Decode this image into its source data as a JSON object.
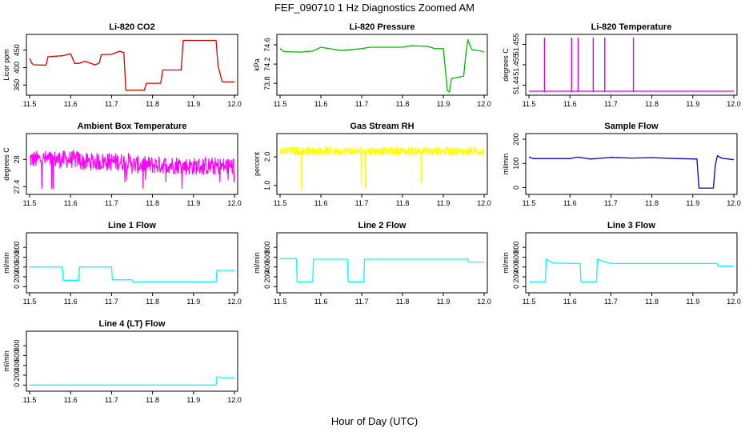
{
  "figure": {
    "title": "FEF_090710  1 Hz Diagnostics Zoomed AM",
    "xlabel": "Hour of Day (UTC)"
  },
  "chart_data": [
    {
      "type": "line",
      "title": "Li-820 CO2",
      "ylabel": "Licor ppm",
      "color": "#dd0000",
      "xlim": [
        11.5,
        12.0
      ],
      "xticks": [
        11.5,
        11.6,
        11.7,
        11.8,
        11.9,
        12.0
      ],
      "ylim": [
        330,
        486
      ],
      "yticks": [
        350,
        400,
        450
      ],
      "series": [
        {
          "x": [
            11.5,
            11.505,
            11.51,
            11.54,
            11.545,
            11.58,
            11.6,
            11.61,
            11.62,
            11.635,
            11.66,
            11.67,
            11.675,
            11.7,
            11.72,
            11.73,
            11.735,
            11.78,
            11.785,
            11.82,
            11.825,
            11.87,
            11.875,
            11.955,
            11.96,
            11.97,
            11.975,
            12.0
          ],
          "y": [
            427,
            413,
            408,
            407,
            431,
            434,
            440,
            412,
            412,
            418,
            408,
            413,
            437,
            438,
            447,
            443,
            335,
            335,
            355,
            355,
            393,
            393,
            478,
            478,
            405,
            360,
            359,
            359
          ]
        }
      ]
    },
    {
      "type": "line",
      "title": "Li-820 Pressure",
      "ylabel": "kPa",
      "color": "#00bb00",
      "xlim": [
        11.5,
        12.0
      ],
      "xticks": [
        11.5,
        11.6,
        11.7,
        11.8,
        11.9,
        12.0
      ],
      "ylim": [
        73.62,
        74.75
      ],
      "yticks": [
        73.8,
        74.2,
        74.6
      ],
      "series": [
        {
          "x": [
            11.5,
            11.51,
            11.55,
            11.58,
            11.6,
            11.65,
            11.7,
            11.72,
            11.8,
            11.82,
            11.86,
            11.88,
            11.9,
            11.91,
            11.915,
            11.92,
            11.95,
            11.955,
            11.96,
            11.97,
            12.0
          ],
          "y": [
            74.52,
            74.46,
            74.45,
            74.47,
            74.55,
            74.48,
            74.52,
            74.55,
            74.55,
            74.58,
            74.57,
            74.52,
            74.52,
            73.65,
            73.62,
            73.9,
            73.95,
            74.4,
            74.7,
            74.5,
            74.46
          ]
        }
      ]
    },
    {
      "type": "line",
      "title": "Li-820 Temperature",
      "ylabel": "degrees C",
      "color": "#dd00dd",
      "xlim": [
        11.5,
        12.0
      ],
      "xticks": [
        11.5,
        11.6,
        11.7,
        11.8,
        11.9,
        12.0
      ],
      "ylim": [
        51.4375,
        51.4575
      ],
      "yticks": [
        51.44,
        51.455
      ],
      "extra_tick_labels": [
        "51.455"
      ],
      "baseline": 51.4375,
      "spikes": [
        11.538,
        11.604,
        11.62,
        11.657,
        11.685,
        11.755
      ],
      "spike_top": 51.4575
    },
    {
      "type": "line",
      "title": "Ambient Box Temperature",
      "ylabel": "degrees C",
      "color": "#ff00ff",
      "xlim": [
        11.5,
        12.0
      ],
      "xticks": [
        11.5,
        11.6,
        11.7,
        11.8,
        11.9,
        12.0
      ],
      "ylim": [
        27.3,
        28.5
      ],
      "yticks": [
        27.4,
        28.0
      ],
      "noise": {
        "center": [
          28.0,
          27.95,
          27.88,
          27.85
        ],
        "amp": 0.2,
        "dips": [
          27.35,
          27.5,
          27.55
        ]
      }
    },
    {
      "type": "line",
      "title": "Gas Stream RH",
      "ylabel": "percent",
      "color": "#ffff00",
      "xlim": [
        11.5,
        12.0
      ],
      "xticks": [
        11.5,
        11.6,
        11.7,
        11.8,
        11.9,
        12.0
      ],
      "ylim": [
        0.8,
        2.7
      ],
      "yticks": [
        1.0,
        2.0
      ],
      "noise": {
        "center": [
          2.2
        ],
        "amp": 0.15,
        "dips": [
          1.0,
          0.85,
          1.1,
          0.9,
          1.5
        ]
      }
    },
    {
      "type": "line",
      "title": "Sample Flow",
      "ylabel": "ml/min",
      "color": "#0000cc",
      "xlim": [
        11.5,
        12.0
      ],
      "xticks": [
        11.5,
        11.6,
        11.7,
        11.8,
        11.9,
        12.0
      ],
      "ylim": [
        -15,
        210
      ],
      "yticks": [
        0,
        100,
        200
      ],
      "series": [
        {
          "x": [
            11.5,
            11.51,
            11.6,
            11.62,
            11.65,
            11.7,
            11.75,
            11.8,
            11.86,
            11.91,
            11.915,
            11.95,
            11.955,
            11.96,
            11.97,
            12.0
          ],
          "y": [
            127,
            120,
            120,
            126,
            118,
            125,
            122,
            124,
            120,
            118,
            -2,
            -2,
            95,
            132,
            122,
            115
          ]
        }
      ]
    },
    {
      "type": "line",
      "title": "Line 1 Flow",
      "ylabel": "ml/min",
      "color": "#00ffff",
      "xlim": [
        11.5,
        12.0
      ],
      "xticks": [
        11.5,
        11.6,
        11.7,
        11.8,
        11.9,
        12.0
      ],
      "ylim": [
        -60,
        1030
      ],
      "yticks": [
        0,
        200,
        400,
        600,
        800
      ],
      "series": [
        {
          "x": [
            11.5,
            11.58,
            11.582,
            11.62,
            11.622,
            11.7,
            11.702,
            11.75,
            11.752,
            11.955,
            11.957,
            12.0
          ],
          "y": [
            400,
            400,
            130,
            130,
            400,
            400,
            140,
            140,
            100,
            100,
            330,
            330
          ]
        }
      ]
    },
    {
      "type": "line",
      "title": "Line 2 Flow",
      "ylabel": "ml/min",
      "color": "#00ffff",
      "xlim": [
        11.5,
        12.0
      ],
      "xticks": [
        11.5,
        11.6,
        11.7,
        11.8,
        11.9,
        12.0
      ],
      "ylim": [
        -60,
        1030
      ],
      "yticks": [
        0,
        200,
        400,
        600,
        800
      ],
      "series": [
        {
          "x": [
            11.5,
            11.54,
            11.542,
            11.58,
            11.582,
            11.665,
            11.667,
            11.705,
            11.707,
            11.96,
            11.962,
            12.0
          ],
          "y": [
            570,
            570,
            100,
            100,
            560,
            560,
            100,
            100,
            560,
            560,
            500,
            500
          ]
        }
      ]
    },
    {
      "type": "line",
      "title": "Line 3 Flow",
      "ylabel": "ml/min",
      "color": "#00ffff",
      "xlim": [
        11.5,
        12.0
      ],
      "xticks": [
        11.5,
        11.6,
        11.7,
        11.8,
        11.9,
        12.0
      ],
      "ylim": [
        -60,
        1030
      ],
      "yticks": [
        0,
        200,
        400,
        600,
        800
      ],
      "series": [
        {
          "x": [
            11.5,
            11.54,
            11.542,
            11.56,
            11.6,
            11.625,
            11.627,
            11.665,
            11.667,
            11.68,
            11.7,
            11.96,
            11.962,
            12.0
          ],
          "y": [
            100,
            100,
            560,
            480,
            470,
            470,
            100,
            100,
            560,
            520,
            470,
            470,
            420,
            420
          ]
        }
      ]
    },
    {
      "type": "line",
      "title": "Line 4 (LT) Flow",
      "ylabel": "ml/min",
      "color": "#00ffff",
      "xlim": [
        11.5,
        12.0
      ],
      "xticks": [
        11.5,
        11.6,
        11.7,
        11.8,
        11.9,
        12.0
      ],
      "ylim": [
        -60,
        1030
      ],
      "yticks": [
        0,
        200,
        400,
        600,
        800
      ],
      "series": [
        {
          "x": [
            11.5,
            11.955,
            11.957,
            11.97,
            12.0
          ],
          "y": [
            0,
            0,
            170,
            150,
            150
          ]
        }
      ]
    }
  ]
}
